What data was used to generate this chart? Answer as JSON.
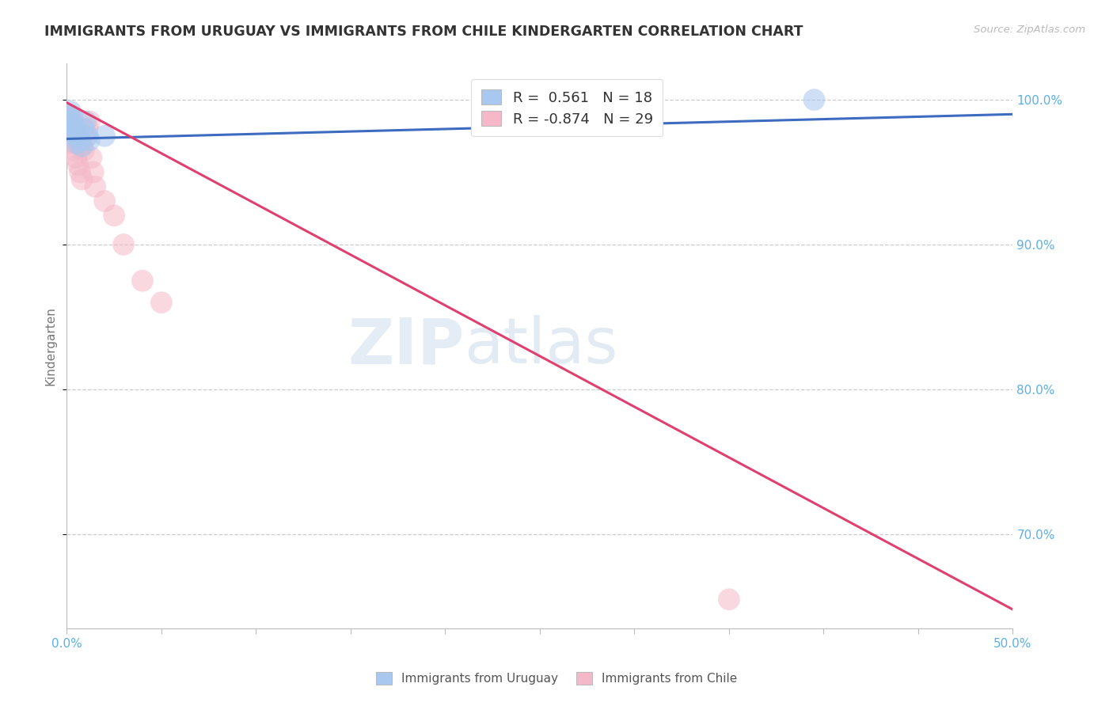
{
  "title": "IMMIGRANTS FROM URUGUAY VS IMMIGRANTS FROM CHILE KINDERGARTEN CORRELATION CHART",
  "source": "Source: ZipAtlas.com",
  "ylabel": "Kindergarten",
  "xlim": [
    0.0,
    0.5
  ],
  "ylim": [
    0.635,
    1.025
  ],
  "yticks": [
    0.7,
    0.8,
    0.9,
    1.0
  ],
  "ytick_labels": [
    "70.0%",
    "80.0%",
    "90.0%",
    "100.0%"
  ],
  "watermark_zip": "ZIP",
  "watermark_atlas": "atlas",
  "legend_line1": "R =  0.561   N = 18",
  "legend_line2": "R = -0.874   N = 29",
  "uruguay_color": "#a8c8f0",
  "chile_color": "#f5b8c8",
  "uruguay_line_color": "#3d6bbf",
  "chile_line_color": "#e04070",
  "grid_color": "#cccccc",
  "title_color": "#333333",
  "axis_label_color": "#777777",
  "right_axis_color": "#5ab0e8",
  "xtick_label_color": "#5ab0e8",
  "uruguay_scatter_x": [
    0.001,
    0.002,
    0.002,
    0.003,
    0.003,
    0.004,
    0.004,
    0.005,
    0.005,
    0.006,
    0.007,
    0.008,
    0.009,
    0.01,
    0.011,
    0.012,
    0.02,
    0.395
  ],
  "uruguay_scatter_y": [
    0.99,
    0.985,
    0.992,
    0.988,
    0.978,
    0.982,
    0.975,
    0.98,
    0.97,
    0.975,
    0.972,
    0.968,
    0.98,
    0.985,
    0.975,
    0.972,
    0.975,
    1.0
  ],
  "chile_scatter_x": [
    0.001,
    0.001,
    0.002,
    0.002,
    0.003,
    0.003,
    0.004,
    0.004,
    0.005,
    0.005,
    0.006,
    0.006,
    0.007,
    0.007,
    0.008,
    0.008,
    0.009,
    0.01,
    0.011,
    0.012,
    0.013,
    0.014,
    0.015,
    0.02,
    0.025,
    0.03,
    0.04,
    0.05,
    0.35
  ],
  "chile_scatter_y": [
    0.99,
    0.975,
    0.988,
    0.972,
    0.985,
    0.97,
    0.982,
    0.965,
    0.978,
    0.96,
    0.975,
    0.955,
    0.97,
    0.95,
    0.968,
    0.945,
    0.965,
    0.975,
    0.98,
    0.985,
    0.96,
    0.95,
    0.94,
    0.93,
    0.92,
    0.9,
    0.875,
    0.86,
    0.655
  ],
  "ury_trendline_x": [
    0.0,
    0.5
  ],
  "ury_trendline_y": [
    0.973,
    0.99
  ],
  "chile_trendline_x": [
    0.0,
    0.5
  ],
  "chile_trendline_y": [
    0.998,
    0.648
  ]
}
